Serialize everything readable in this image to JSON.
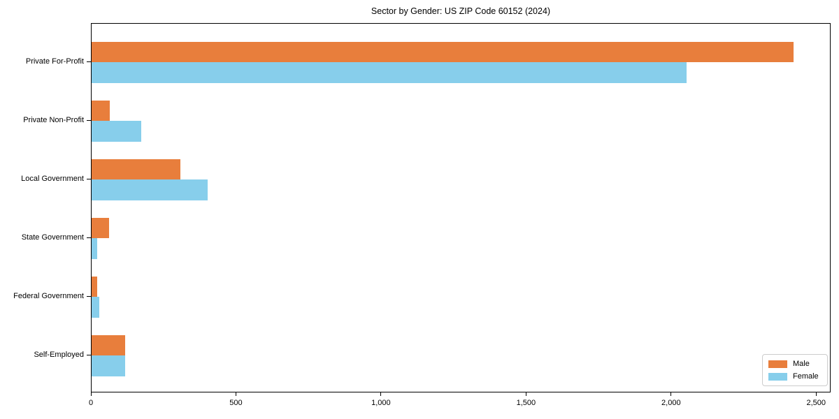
{
  "chart_data": {
    "type": "bar",
    "orientation": "horizontal",
    "title": "Sector by Gender: US ZIP Code 60152 (2024)",
    "categories": [
      "Private For-Profit",
      "Private Non-Profit",
      "Local Government",
      "State Government",
      "Federal Government",
      "Self-Employed"
    ],
    "series": [
      {
        "name": "Male",
        "color": "#e87e3c",
        "values": [
          2420,
          63,
          305,
          59,
          20,
          116
        ]
      },
      {
        "name": "Female",
        "color": "#87ceeb",
        "values": [
          2050,
          170,
          400,
          19,
          26,
          116
        ]
      }
    ],
    "xlabel": "",
    "ylabel": "",
    "xlim": [
      0,
      2550
    ],
    "x_ticks": [
      0,
      500,
      1000,
      1500,
      2000,
      2500
    ],
    "x_tick_labels": [
      "0",
      "500",
      "1,000",
      "1,500",
      "2,000",
      "2,500"
    ],
    "grid": false,
    "legend_position": "lower right",
    "background_color": "#ffffff",
    "spine_color": "#000000"
  }
}
